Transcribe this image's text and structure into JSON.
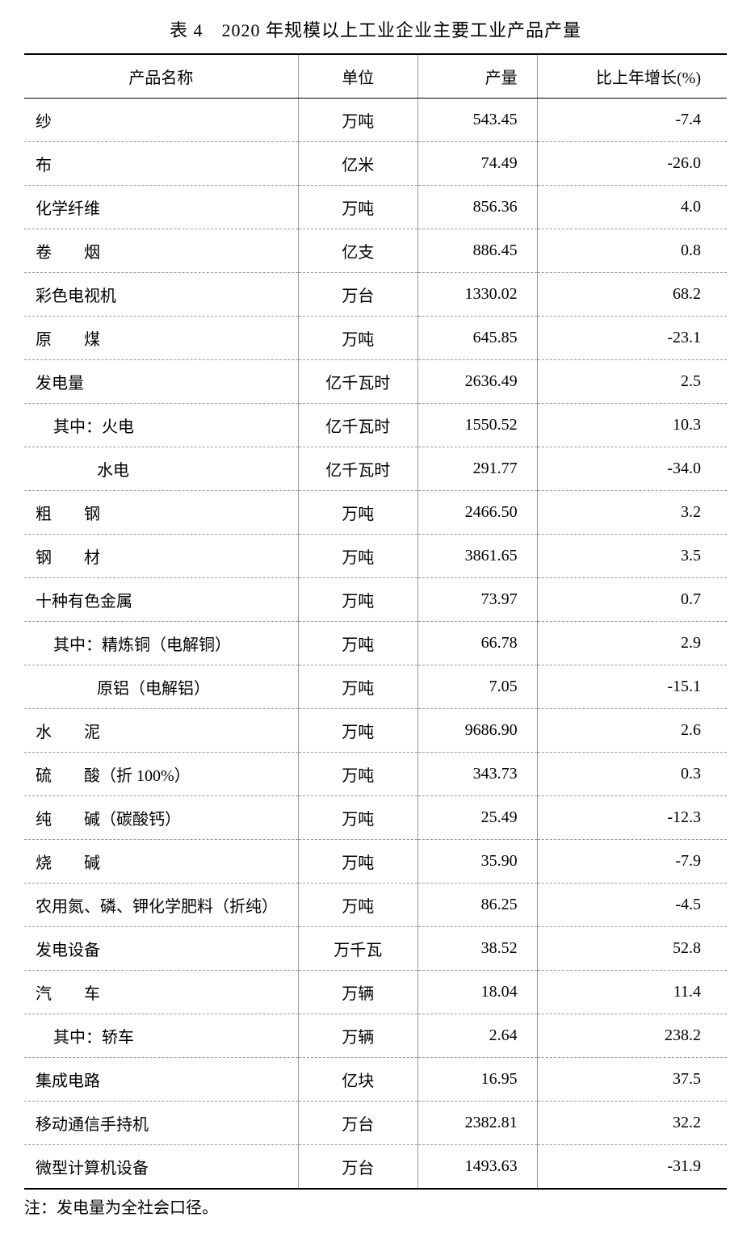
{
  "title": "表 4　2020 年规模以上工业企业主要工业产品产量",
  "columns": [
    "产品名称",
    "单位",
    "产量",
    "比上年增长(%)"
  ],
  "rows": [
    {
      "name": "纱",
      "unit": "万吨",
      "output": "543.45",
      "growth": "-7.4",
      "indent": 0,
      "spaced": false
    },
    {
      "name": "布",
      "unit": "亿米",
      "output": "74.49",
      "growth": "-26.0",
      "indent": 0,
      "spaced": false
    },
    {
      "name": "化学纤维",
      "unit": "万吨",
      "output": "856.36",
      "growth": "4.0",
      "indent": 0,
      "spaced": false
    },
    {
      "name": "卷　　烟",
      "unit": "亿支",
      "output": "886.45",
      "growth": "0.8",
      "indent": 0,
      "spaced": false
    },
    {
      "name": "彩色电视机",
      "unit": "万台",
      "output": "1330.02",
      "growth": "68.2",
      "indent": 0,
      "spaced": false
    },
    {
      "name": "原　　煤",
      "unit": "万吨",
      "output": "645.85",
      "growth": "-23.1",
      "indent": 0,
      "spaced": false
    },
    {
      "name": "发电量",
      "unit": "亿千瓦时",
      "output": "2636.49",
      "growth": "2.5",
      "indent": 0,
      "spaced": false
    },
    {
      "name": "其中：火电",
      "unit": "亿千瓦时",
      "output": "1550.52",
      "growth": "10.3",
      "indent": 1,
      "spaced": false
    },
    {
      "name": "水电",
      "unit": "亿千瓦时",
      "output": "291.77",
      "growth": "-34.0",
      "indent": 2,
      "spaced": false
    },
    {
      "name": "粗　　钢",
      "unit": "万吨",
      "output": "2466.50",
      "growth": "3.2",
      "indent": 0,
      "spaced": false
    },
    {
      "name": "钢　　材",
      "unit": "万吨",
      "output": "3861.65",
      "growth": "3.5",
      "indent": 0,
      "spaced": false
    },
    {
      "name": "十种有色金属",
      "unit": "万吨",
      "output": "73.97",
      "growth": "0.7",
      "indent": 0,
      "spaced": false
    },
    {
      "name": "其中：精炼铜（电解铜）",
      "unit": "万吨",
      "output": "66.78",
      "growth": "2.9",
      "indent": 1,
      "spaced": false
    },
    {
      "name": "原铝（电解铝）",
      "unit": "万吨",
      "output": "7.05",
      "growth": "-15.1",
      "indent": 2,
      "spaced": false
    },
    {
      "name": "水　　泥",
      "unit": "万吨",
      "output": "9686.90",
      "growth": "2.6",
      "indent": 0,
      "spaced": false
    },
    {
      "name": "硫　　酸（折 100%）",
      "unit": "万吨",
      "output": "343.73",
      "growth": "0.3",
      "indent": 0,
      "spaced": false
    },
    {
      "name": "纯　　碱（碳酸钙）",
      "unit": "万吨",
      "output": "25.49",
      "growth": "-12.3",
      "indent": 0,
      "spaced": false
    },
    {
      "name": "烧　　碱",
      "unit": "万吨",
      "output": "35.90",
      "growth": "-7.9",
      "indent": 0,
      "spaced": false
    },
    {
      "name": "农用氮、磷、钾化学肥料（折纯）",
      "unit": "万吨",
      "output": "86.25",
      "growth": "-4.5",
      "indent": 0,
      "spaced": false
    },
    {
      "name": "发电设备",
      "unit": "万千瓦",
      "output": "38.52",
      "growth": "52.8",
      "indent": 0,
      "spaced": false
    },
    {
      "name": "汽　　车",
      "unit": "万辆",
      "output": "18.04",
      "growth": "11.4",
      "indent": 0,
      "spaced": false
    },
    {
      "name": "其中：轿车",
      "unit": "万辆",
      "output": "2.64",
      "growth": "238.2",
      "indent": 1,
      "spaced": false
    },
    {
      "name": "集成电路",
      "unit": "亿块",
      "output": "16.95",
      "growth": "37.5",
      "indent": 0,
      "spaced": false
    },
    {
      "name": "移动通信手持机",
      "unit": "万台",
      "output": "2382.81",
      "growth": "32.2",
      "indent": 0,
      "spaced": false
    },
    {
      "name": "微型计算机设备",
      "unit": "万台",
      "output": "1493.63",
      "growth": "-31.9",
      "indent": 0,
      "spaced": false
    }
  ],
  "note": "注：发电量为全社会口径。",
  "style": {
    "background_color": "#ffffff",
    "text_color": "#000000",
    "border_top_width": 2.5,
    "header_border_width": 1.5,
    "row_border_style": "dashed",
    "row_border_color": "#999999",
    "col_border_color": "#999999",
    "title_fontsize": 22,
    "body_fontsize": 20,
    "font_family": "SimSun"
  }
}
